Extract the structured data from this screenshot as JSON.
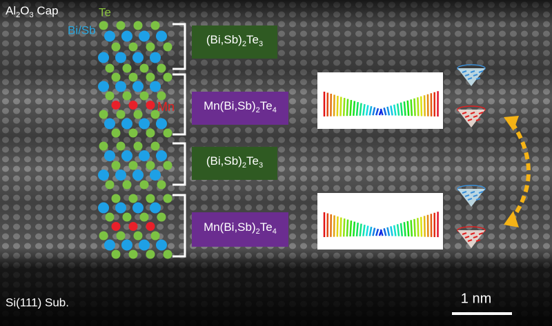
{
  "labels": {
    "cap": [
      "Al",
      "2",
      "O",
      "3",
      " Cap"
    ],
    "te": "Te",
    "bisb": "Bi/Sb",
    "mn": "Mn",
    "substrate": "Si(111) Sub.",
    "scale": "1 nm"
  },
  "boxes": [
    [
      "(Bi,Sb)",
      "2",
      "Te",
      "3"
    ],
    [
      "Mn(Bi,Sb)",
      "2",
      "Te",
      "4"
    ],
    [
      "(Bi,Sb)",
      "2",
      "Te",
      "3"
    ],
    [
      "Mn(Bi,Sb)",
      "2",
      "Te",
      "4"
    ]
  ]
}
